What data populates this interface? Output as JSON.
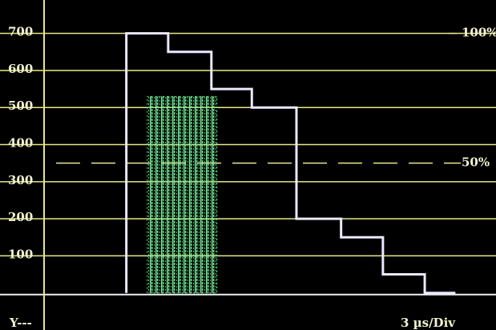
{
  "chart_data": {
    "type": "line",
    "xlim": [
      -3.16,
      32.41
    ],
    "ylim": [
      -100,
      790
    ],
    "y2lim": [
      -14.29,
      112.86
    ],
    "yticks": [
      100,
      200,
      300,
      400,
      500,
      600,
      700
    ],
    "y2ticks": [
      {
        "value": 100,
        "label": "100%"
      },
      {
        "value": 50,
        "label": "50%"
      }
    ],
    "grid": true,
    "grid_color": "#e8e88a",
    "background": "#000000",
    "series": [
      {
        "color": "#ece8ff",
        "x": [
          5.9,
          5.9,
          8.9,
          8.9,
          12,
          12,
          14.9,
          14.9,
          18.1,
          18.1,
          21.3,
          21.3,
          24.3,
          24.3,
          27.3,
          27.3,
          29.5
        ],
        "values": [
          0,
          700,
          700,
          650,
          650,
          550,
          550,
          500,
          500,
          200,
          200,
          150,
          150,
          50,
          50,
          0,
          0
        ]
      },
      {
        "color": "#66e08a",
        "x": [
          7.4,
          12.4
        ],
        "values": [
          530,
          530
        ]
      }
    ],
    "footer_left": "Y---",
    "footer_right": "3 µs/Div"
  }
}
